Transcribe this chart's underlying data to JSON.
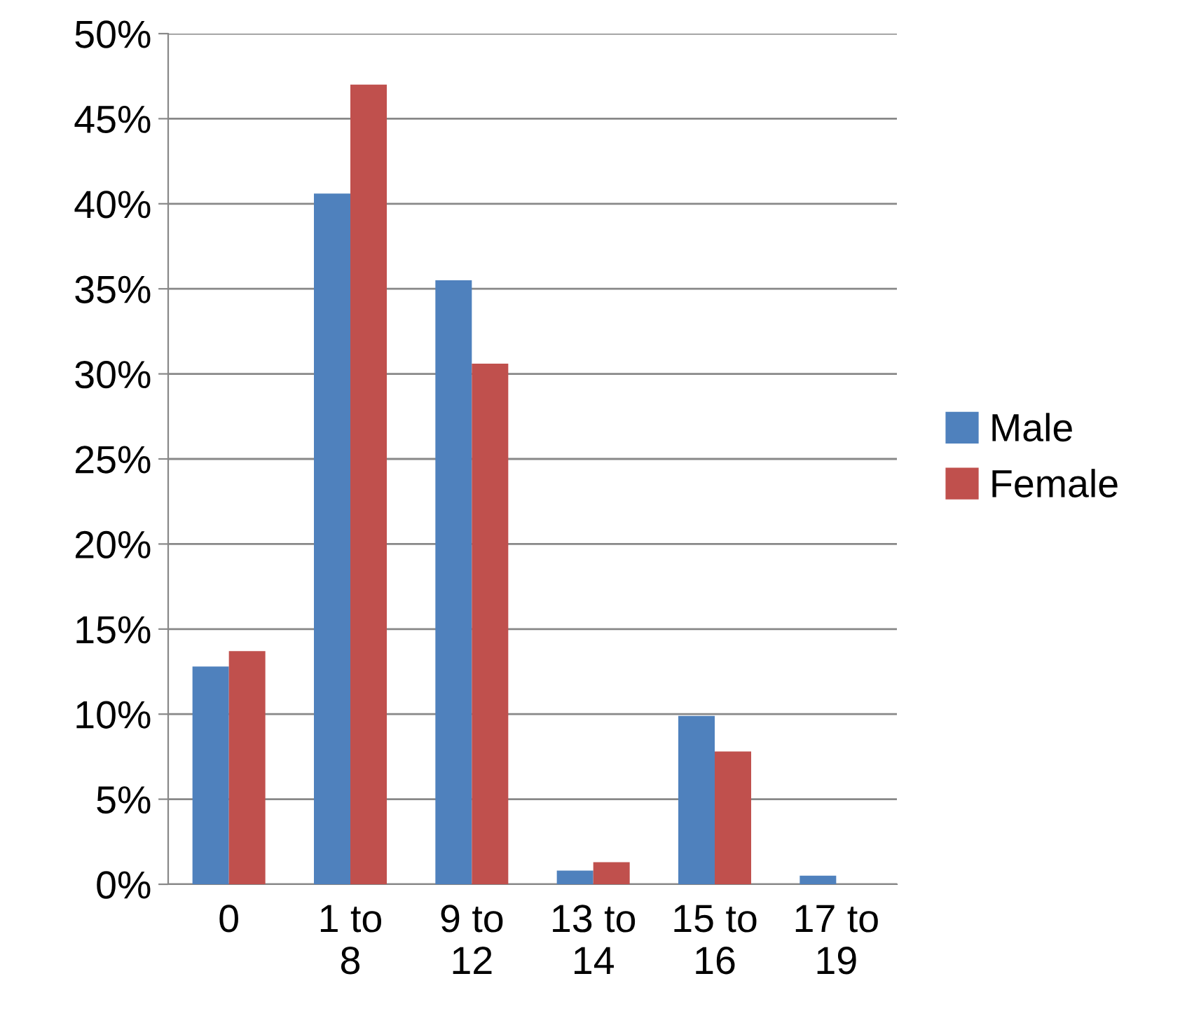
{
  "chart_data": {
    "type": "bar",
    "categories": [
      "0",
      "1 to\n8",
      "9 to\n12",
      "13 to\n14",
      "15 to\n16",
      "17 to\n19"
    ],
    "series": [
      {
        "name": "Male",
        "color": "#4f81bd",
        "values": [
          12.8,
          40.6,
          35.5,
          0.8,
          9.9,
          0.5
        ]
      },
      {
        "name": "Female",
        "color": "#c0504d",
        "values": [
          13.7,
          47.0,
          30.6,
          1.3,
          7.8,
          0
        ]
      }
    ],
    "ylim": [
      0,
      50
    ],
    "yticks": [
      {
        "value": 0,
        "label": "0%"
      },
      {
        "value": 5,
        "label": "5%"
      },
      {
        "value": 10,
        "label": "10%"
      },
      {
        "value": 15,
        "label": "15%"
      },
      {
        "value": 20,
        "label": "20%"
      },
      {
        "value": 25,
        "label": "25%"
      },
      {
        "value": 30,
        "label": "30%"
      },
      {
        "value": 35,
        "label": "35%"
      },
      {
        "value": 40,
        "label": "40%"
      },
      {
        "value": 45,
        "label": "45%"
      },
      {
        "value": 50,
        "label": "50%"
      }
    ],
    "grid": "y",
    "legend": "right"
  }
}
